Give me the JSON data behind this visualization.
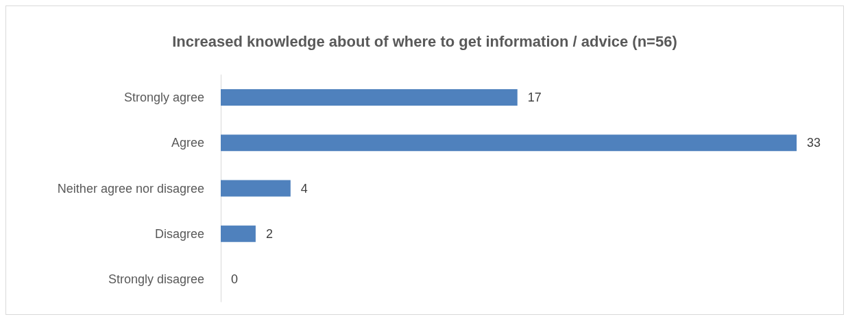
{
  "chart_data": {
    "type": "bar",
    "orientation": "horizontal",
    "title": "Increased knowledge about of where to get information / advice (n=56)",
    "categories": [
      "Strongly agree",
      "Agree",
      "Neither agree nor disagree",
      "Disagree",
      "Strongly disagree"
    ],
    "values": [
      17,
      33,
      4,
      2,
      0
    ],
    "color": "#4f81bd",
    "data_labels": true,
    "tick_labels": "y"
  }
}
